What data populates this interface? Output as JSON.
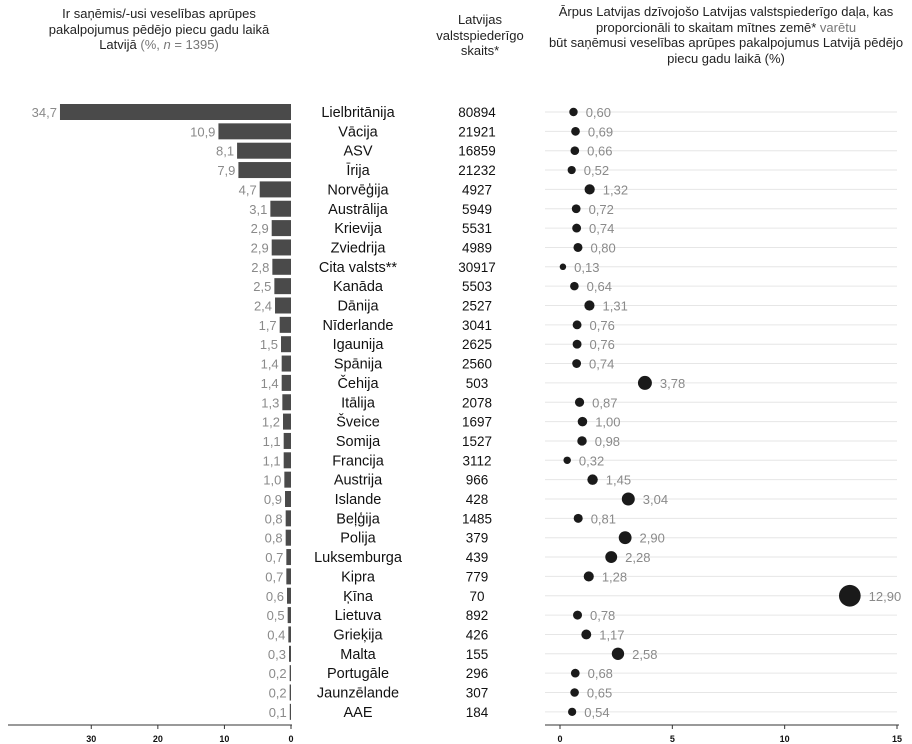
{
  "headers": {
    "left_main": "Ir saņēmis/-usi veselības aprūpes pakalpojumus pēdējo piecu gadu laikā Latvijā",
    "left_paren_open": " (%, ",
    "left_n": "n",
    "left_n_value": " = 1395)",
    "mid": "Latvijas valstspiederīgo skaits*",
    "right_a": "Ārpus Latvijas dzīvojošo Latvijas valstspiederīgo daļa, kas proporcionāli to skaitam mītnes zemē*",
    "right_b": " varētu",
    "right_c": "būt saņēmusi veselības aprūpes pakalpojumus Latvijā pēdējo piecu gadu laikā (%)"
  },
  "colors": {
    "bar": "#4a4a4a",
    "dot": "#1a1a1a",
    "value_label": "#8a8a8a",
    "gridline": "#e6e6e6",
    "axis": "#333333"
  },
  "chart_data": [
    {
      "type": "bar",
      "orientation": "horizontal",
      "direction": "right-to-left",
      "categories": [
        "Lielbritānija",
        "Vācija",
        "ASV",
        "Īrija",
        "Norvēģija",
        "Austrālija",
        "Krievija",
        "Zviedrija",
        "Cita valsts**",
        "Kanāda",
        "Dānija",
        "Nīderlande",
        "Igaunija",
        "Spānija",
        "Čehija",
        "Itālija",
        "Šveice",
        "Somija",
        "Francija",
        "Austrija",
        "Islande",
        "Beļģija",
        "Polija",
        "Luksemburga",
        "Kipra",
        "Ķīna",
        "Lietuva",
        "Grieķija",
        "Malta",
        "Portugāle",
        "Jaunzēlande",
        "AAE"
      ],
      "values": [
        34.7,
        10.9,
        8.1,
        7.9,
        4.7,
        3.1,
        2.9,
        2.9,
        2.8,
        2.5,
        2.4,
        1.7,
        1.5,
        1.4,
        1.4,
        1.3,
        1.2,
        1.1,
        1.1,
        1.0,
        0.9,
        0.8,
        0.8,
        0.7,
        0.7,
        0.6,
        0.5,
        0.4,
        0.3,
        0.2,
        0.2,
        0.1
      ],
      "value_labels": [
        "34,7",
        "10,9",
        "8,1",
        "7,9",
        "4,7",
        "3,1",
        "2,9",
        "2,9",
        "2,8",
        "2,5",
        "2,4",
        "1,7",
        "1,5",
        "1,4",
        "1,4",
        "1,3",
        "1,2",
        "1,1",
        "1,1",
        "1,0",
        "0,9",
        "0,8",
        "0,8",
        "0,7",
        "0,7",
        "0,6",
        "0,5",
        "0,4",
        "0,3",
        "0,2",
        "0,2",
        "0,1"
      ],
      "xlim": [
        0,
        37.4
      ],
      "xticks": [
        30,
        20,
        10,
        0
      ],
      "xtick_labels": [
        "30",
        "20",
        "10",
        "0"
      ]
    },
    {
      "type": "table",
      "values": [
        "80894",
        "21921",
        "16859",
        "21232",
        "4927",
        "5949",
        "5531",
        "4989",
        "30917",
        "5503",
        "2527",
        "3041",
        "2625",
        "2560",
        "503",
        "2078",
        "1697",
        "1527",
        "3112",
        "966",
        "428",
        "1485",
        "379",
        "439",
        "779",
        "70",
        "892",
        "426",
        "155",
        "296",
        "307",
        "184"
      ]
    },
    {
      "type": "scatter",
      "values": [
        0.6,
        0.69,
        0.66,
        0.52,
        1.32,
        0.72,
        0.74,
        0.8,
        0.13,
        0.64,
        1.31,
        0.76,
        0.76,
        0.74,
        3.78,
        0.87,
        1.0,
        0.98,
        0.32,
        1.45,
        3.04,
        0.81,
        2.9,
        2.28,
        1.28,
        12.9,
        0.78,
        1.17,
        2.58,
        0.68,
        0.65,
        0.54
      ],
      "value_labels": [
        "0,60",
        "0,69",
        "0,66",
        "0,52",
        "1,32",
        "0,72",
        "0,74",
        "0,80",
        "0,13",
        "0,64",
        "1,31",
        "0,76",
        "0,76",
        "0,74",
        "3,78",
        "0,87",
        "1,00",
        "0,98",
        "0,32",
        "1,45",
        "3,04",
        "0,81",
        "2,90",
        "2,28",
        "1,28",
        "12,90",
        "0,78",
        "1,17",
        "2,58",
        "0,68",
        "0,65",
        "0,54"
      ],
      "size_encodes": "value",
      "xlim": [
        0,
        15
      ],
      "xticks": [
        0,
        5,
        10,
        15
      ],
      "xtick_labels": [
        "0",
        "5",
        "10",
        "15"
      ],
      "grid": true
    }
  ]
}
